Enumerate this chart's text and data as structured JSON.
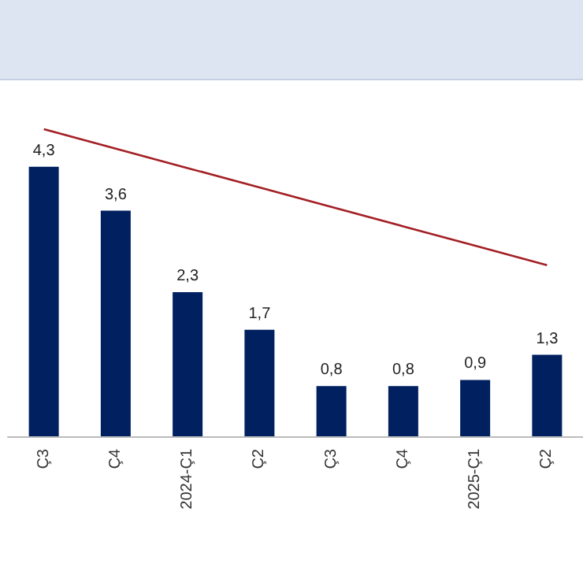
{
  "chart_data": {
    "type": "bar",
    "categories": [
      "Ç3",
      "Ç4",
      "2024-Ç1",
      "Ç2",
      "Ç3",
      "Ç4",
      "2025-Ç1",
      "Ç2"
    ],
    "series": [
      {
        "color": "#002060",
        "values": [
          4.3,
          3.6,
          2.3,
          1.7,
          0.8,
          0.8,
          0.9,
          1.3
        ],
        "value_labels": [
          "4,3",
          "3,6",
          "2,3",
          "1,7",
          "0,8",
          "0,8",
          "0,9",
          "1,3"
        ]
      },
      {
        "type": "line",
        "color": "#a31f24",
        "values": [
          4.9,
          4.59,
          4.28,
          3.97,
          3.66,
          3.35,
          3.04,
          2.73
        ]
      }
    ],
    "grid": false,
    "marker": "none"
  }
}
